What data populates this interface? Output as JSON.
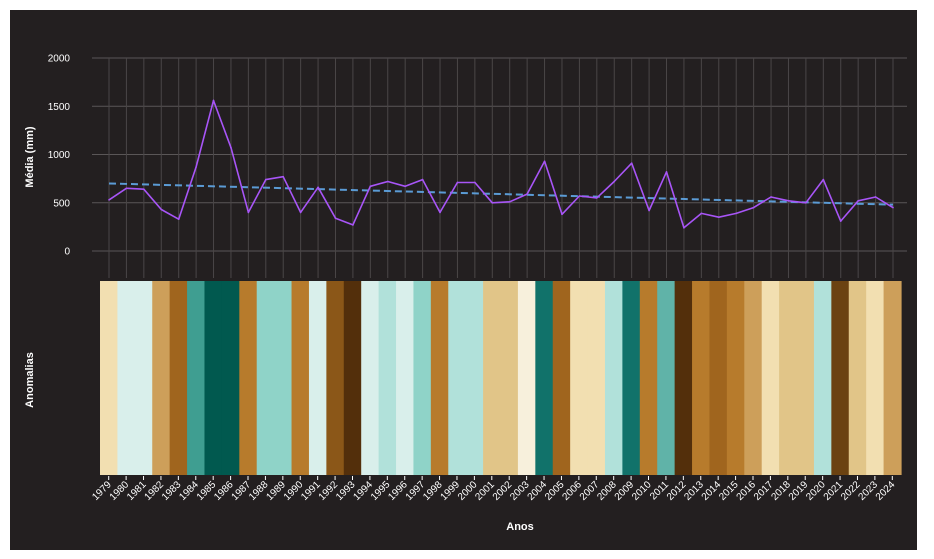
{
  "chart_data": {
    "type": "line",
    "title": "",
    "xlabel": "Anos",
    "ylabel": "Média (mm)",
    "stripes_label": "Anomalias",
    "ylim": [
      -300,
      2000
    ],
    "yticks": [
      0,
      500,
      1000,
      1500,
      2000
    ],
    "grid": true,
    "x": [
      1979,
      1980,
      1981,
      1982,
      1983,
      1984,
      1985,
      1986,
      1987,
      1988,
      1989,
      1990,
      1991,
      1992,
      1993,
      1994,
      1995,
      1996,
      1997,
      1998,
      1999,
      2000,
      2001,
      2002,
      2003,
      2004,
      2005,
      2006,
      2007,
      2008,
      2009,
      2010,
      2011,
      2012,
      2013,
      2014,
      2015,
      2016,
      2017,
      2018,
      2019,
      2020,
      2021,
      2022,
      2023,
      2024
    ],
    "series": [
      {
        "values": [
          530,
          650,
          640,
          430,
          330,
          870,
          1560,
          1070,
          400,
          740,
          770,
          400,
          660,
          340,
          270,
          670,
          720,
          670,
          740,
          400,
          710,
          710,
          500,
          510,
          590,
          930,
          380,
          570,
          550,
          720,
          910,
          420,
          820,
          240,
          390,
          350,
          390,
          450,
          560,
          520,
          500,
          740,
          310,
          520,
          560,
          450
        ],
        "color": "#a855f7"
      }
    ],
    "trend": {
      "start": 700,
      "end": 480,
      "color": "#5b9bd5",
      "style": "dashed"
    },
    "stripe_colors": [
      "#f2dfb1",
      "#d9efeb",
      "#d9efeb",
      "#cd9f5a",
      "#a0651e",
      "#3f9e91",
      "#01594f",
      "#01594f",
      "#b77b2c",
      "#8fd3c8",
      "#8fd3c8",
      "#b77b2c",
      "#d9efeb",
      "#8b5718",
      "#532f0b",
      "#d9efeb",
      "#b1e1da",
      "#d9efeb",
      "#8fd3c8",
      "#b77b2c",
      "#b1e1da",
      "#b1e1da",
      "#e1c588",
      "#e1c588",
      "#f7f0dc",
      "#11726a",
      "#a0651e",
      "#f2dfb1",
      "#f2dfb1",
      "#b1e1da",
      "#11726a",
      "#b77b2c",
      "#60b3a8",
      "#532f0b",
      "#b77b2c",
      "#a0651e",
      "#b77b2c",
      "#cd9f5a",
      "#f2dfb1",
      "#e1c588",
      "#e1c588",
      "#b1e1da",
      "#6b4211",
      "#e1c588",
      "#f2dfb1",
      "#cd9f5a"
    ]
  }
}
